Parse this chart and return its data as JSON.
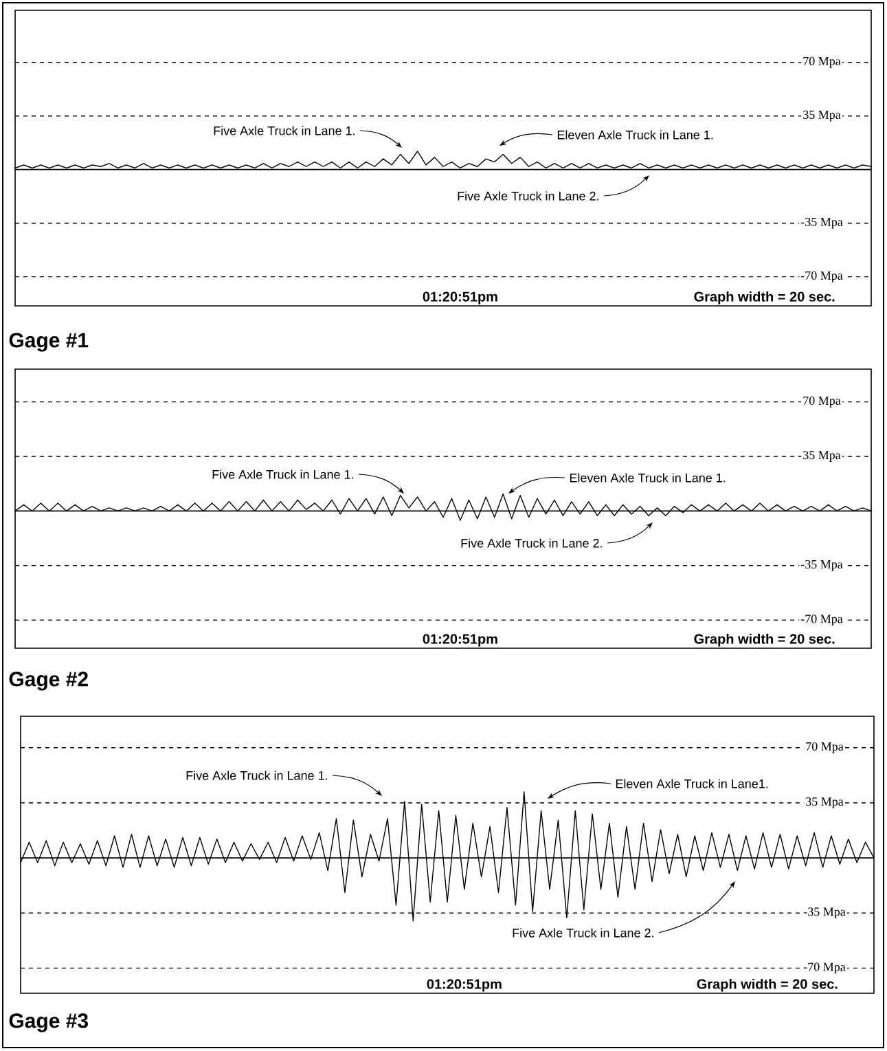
{
  "chart_data": [
    {
      "type": "line",
      "title": "Gage #1",
      "categories": [
        null,
        null,
        null,
        null,
        null,
        null,
        null,
        null,
        null,
        null,
        null,
        null,
        null,
        null,
        null,
        null,
        null,
        null,
        null,
        null,
        null,
        null,
        null,
        null,
        null,
        null,
        null,
        null,
        null,
        null,
        null,
        null,
        null,
        null,
        null,
        null,
        null,
        null,
        null,
        null,
        null,
        null,
        null,
        null,
        null,
        null,
        null,
        null,
        null,
        null,
        null,
        null,
        null,
        null,
        null,
        null,
        null,
        null,
        null,
        null,
        null,
        null,
        null,
        null,
        null,
        null,
        null,
        null,
        null,
        null,
        null,
        null,
        null,
        null,
        null,
        null,
        null,
        null,
        null,
        null,
        null,
        null,
        null,
        null,
        null,
        null,
        null,
        null,
        null,
        null,
        null,
        null,
        null,
        null,
        null,
        null,
        null,
        null,
        null,
        null,
        null
      ],
      "ylim": [
        -89,
        104
      ],
      "yticks": [
        {
          "value": 70,
          "label": "70 Mpa"
        },
        {
          "value": 35,
          "label": "35 Mpa"
        },
        {
          "value": -35,
          "label": "-35 Mpa"
        },
        {
          "value": -70,
          "label": "-70 Mpa"
        }
      ],
      "tick_labels": "y",
      "grid": "y",
      "ref_lines": [
        {
          "axis": "y",
          "value": 0,
          "line_style": "solid"
        }
      ],
      "series": [
        {
          "color": "#000000",
          "values": [
            1,
            3,
            1,
            3,
            1,
            3,
            1,
            3,
            1,
            3,
            2,
            4,
            1,
            3,
            1,
            4,
            1,
            3,
            1,
            3,
            1,
            3,
            1,
            3,
            1,
            3,
            1,
            3,
            1,
            4,
            1,
            4,
            2,
            5,
            2,
            5,
            2,
            5,
            1,
            5,
            1,
            5,
            2,
            7,
            3,
            10,
            4,
            12,
            3,
            8,
            2,
            5,
            1,
            4,
            2,
            7,
            5,
            10,
            4,
            8,
            2,
            5,
            1,
            4,
            1,
            4,
            1,
            4,
            1,
            3,
            1,
            3,
            1,
            4,
            1,
            3,
            1,
            3,
            1,
            3,
            1,
            3,
            1,
            3,
            1,
            3,
            1,
            3,
            1,
            3,
            1,
            3,
            1,
            3,
            1,
            3,
            1,
            3,
            1,
            3,
            2
          ]
        }
      ],
      "annotations": [
        "Five Axle Truck in Lane 1.",
        "Eleven Axle Truck in Lane 1.",
        "Five Axle Truck in Lane 2.",
        "01:20:51pm",
        "Graph width =  20 sec."
      ]
    },
    {
      "type": "line",
      "title": "Gage #2",
      "categories": [
        null,
        null,
        null,
        null,
        null,
        null,
        null,
        null,
        null,
        null,
        null,
        null,
        null,
        null,
        null,
        null,
        null,
        null,
        null,
        null,
        null,
        null,
        null,
        null,
        null,
        null,
        null,
        null,
        null,
        null,
        null,
        null,
        null,
        null,
        null,
        null,
        null,
        null,
        null,
        null,
        null,
        null,
        null,
        null,
        null,
        null,
        null,
        null,
        null,
        null,
        null,
        null,
        null,
        null,
        null,
        null,
        null,
        null,
        null,
        null,
        null,
        null,
        null,
        null,
        null,
        null,
        null,
        null,
        null,
        null,
        null,
        null,
        null,
        null,
        null,
        null,
        null,
        null,
        null,
        null,
        null,
        null,
        null,
        null,
        null,
        null,
        null,
        null,
        null,
        null,
        null,
        null,
        null,
        null,
        null,
        null,
        null,
        null,
        null,
        null,
        null
      ],
      "ylim": [
        -88,
        91
      ],
      "yticks": [
        {
          "value": 70,
          "label": "70 Mpa"
        },
        {
          "value": 35,
          "label": "35 Mpa"
        },
        {
          "value": -35,
          "label": "-35 Mpa"
        },
        {
          "value": -70,
          "label": "-70 Mpa"
        }
      ],
      "tick_labels": "y",
      "grid": "y",
      "ref_lines": [
        {
          "axis": "y",
          "value": 0,
          "line_style": "solid"
        }
      ],
      "series": [
        {
          "color": "#000000",
          "values": [
            0,
            4,
            0,
            5,
            0,
            5,
            0,
            4,
            0,
            3,
            0,
            2,
            0,
            2,
            0,
            2,
            0,
            3,
            0,
            4,
            0,
            5,
            0,
            5,
            0,
            6,
            0,
            6,
            0,
            7,
            0,
            6,
            0,
            7,
            1,
            5,
            0,
            7,
            -2,
            8,
            0,
            8,
            -2,
            9,
            -3,
            10,
            2,
            9,
            0,
            6,
            -4,
            8,
            -6,
            7,
            -5,
            9,
            -4,
            11,
            -5,
            10,
            -4,
            8,
            -2,
            7,
            -3,
            6,
            -2,
            6,
            -3,
            4,
            -3,
            4,
            -2,
            3,
            -3,
            2,
            -3,
            3,
            -1,
            4,
            0,
            4,
            0,
            5,
            0,
            4,
            0,
            5,
            0,
            4,
            0,
            3,
            0,
            3,
            0,
            4,
            0,
            3,
            0,
            2,
            0
          ]
        }
      ],
      "annotations": [
        "Five Axle Truck in Lane 1.",
        "Eleven Axle Truck in Lane 1.",
        "Five Axle Truck in Lane 2.",
        "01:20:51pm",
        "Graph width =  20 sec."
      ]
    },
    {
      "type": "line",
      "title": "Gage #3",
      "categories": [
        null,
        null,
        null,
        null,
        null,
        null,
        null,
        null,
        null,
        null,
        null,
        null,
        null,
        null,
        null,
        null,
        null,
        null,
        null,
        null,
        null,
        null,
        null,
        null,
        null,
        null,
        null,
        null,
        null,
        null,
        null,
        null,
        null,
        null,
        null,
        null,
        null,
        null,
        null,
        null,
        null,
        null,
        null,
        null,
        null,
        null,
        null,
        null,
        null,
        null,
        null,
        null,
        null,
        null,
        null,
        null,
        null,
        null,
        null,
        null,
        null,
        null,
        null,
        null,
        null,
        null,
        null,
        null,
        null,
        null,
        null,
        null,
        null,
        null,
        null,
        null,
        null,
        null,
        null,
        null,
        null,
        null,
        null,
        null,
        null,
        null,
        null,
        null,
        null,
        null,
        null,
        null,
        null,
        null,
        null,
        null,
        null,
        null,
        null,
        null,
        null
      ],
      "ylim": [
        -86,
        90
      ],
      "yticks": [
        {
          "value": 70,
          "label": "70 Mpa"
        },
        {
          "value": 35,
          "label": "35 Mpa"
        },
        {
          "value": -35,
          "label": "-35 Mpa"
        },
        {
          "value": -70,
          "label": "-70 Mpa"
        }
      ],
      "tick_labels": "y",
      "grid": "y",
      "ref_lines": [
        {
          "axis": "y",
          "value": 0,
          "line_style": "solid"
        }
      ],
      "series": [
        {
          "color": "#000000",
          "values": [
            -3,
            10,
            -3,
            11,
            -5,
            10,
            -3,
            9,
            -4,
            11,
            -5,
            14,
            -6,
            15,
            -6,
            14,
            -5,
            12,
            -6,
            13,
            -5,
            13,
            -4,
            12,
            -3,
            10,
            -2,
            9,
            -1,
            10,
            -3,
            13,
            -2,
            14,
            -1,
            16,
            -8,
            25,
            -22,
            24,
            -12,
            15,
            -2,
            25,
            -30,
            36,
            -40,
            34,
            -28,
            30,
            -28,
            27,
            -20,
            22,
            -12,
            20,
            -22,
            32,
            -30,
            42,
            -34,
            30,
            -20,
            24,
            -38,
            30,
            -33,
            28,
            -20,
            22,
            -25,
            20,
            -20,
            22,
            -15,
            18,
            -10,
            15,
            -12,
            14,
            -8,
            16,
            -6,
            15,
            -8,
            14,
            -7,
            16,
            -6,
            15,
            -7,
            14,
            -5,
            16,
            -6,
            14,
            -4,
            12,
            -3,
            10,
            0
          ]
        }
      ],
      "annotations": [
        "Five Axle Truck in Lane 1.",
        "Eleven Axle Truck in Lane1.",
        "Five Axle Truck in Lane 2.",
        "01:20:51pm",
        "Graph width =  20 sec."
      ]
    }
  ]
}
